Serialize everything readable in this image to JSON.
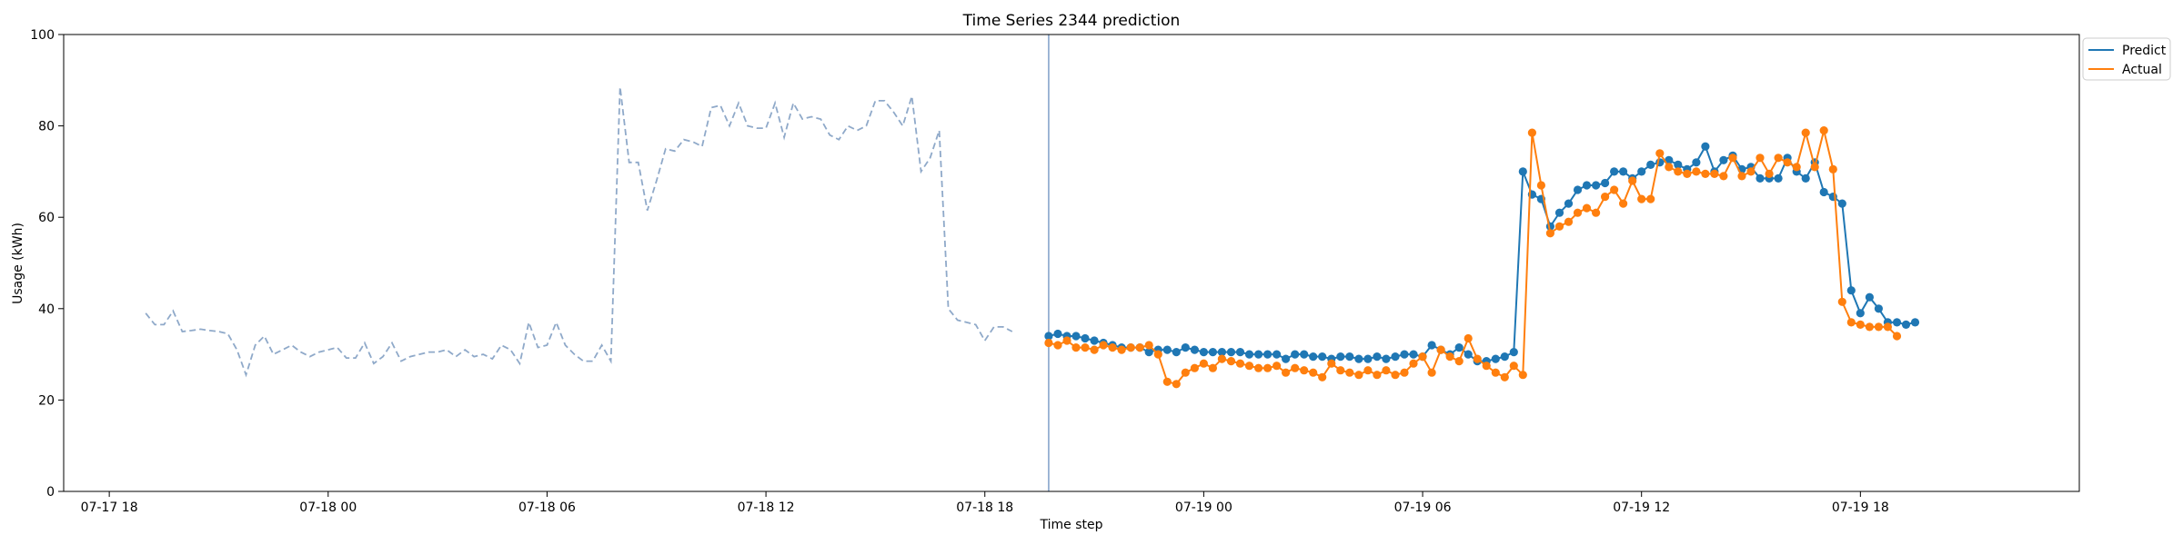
{
  "chart_data": {
    "type": "line",
    "title": "Time Series 2344 prediction",
    "xlabel": "Time step",
    "ylabel": "Usage (kWh)",
    "ylim": [
      0,
      100
    ],
    "yticks": [
      0,
      20,
      40,
      60,
      80,
      100
    ],
    "xlim": [
      "2017-07-17T16:45",
      "2017-07-20T00:00"
    ],
    "xticks": [
      {
        "t": "2017-07-17T18:00",
        "label": "07-17 18"
      },
      {
        "t": "2017-07-18T00:00",
        "label": "07-18 00"
      },
      {
        "t": "2017-07-18T06:00",
        "label": "07-18 06"
      },
      {
        "t": "2017-07-18T12:00",
        "label": "07-18 12"
      },
      {
        "t": "2017-07-18T18:00",
        "label": "07-18 18"
      },
      {
        "t": "2017-07-19T00:00",
        "label": "07-19 00"
      },
      {
        "t": "2017-07-19T06:00",
        "label": "07-19 06"
      },
      {
        "t": "2017-07-19T12:00",
        "label": "07-19 12"
      },
      {
        "t": "2017-07-19T18:00",
        "label": "07-19 18"
      }
    ],
    "grid": false,
    "legend_position": "top-right, outside plot",
    "split_marker_time": "2017-07-18T19:45",
    "history": {
      "start": "2017-07-17T19:00",
      "step_minutes": 15,
      "style": "dashed",
      "color": "#8fa9c9",
      "values": [
        39,
        36.5,
        36.5,
        39.5,
        35,
        35.2,
        35.5,
        35.2,
        35,
        34.5,
        31,
        25.5,
        32,
        34,
        30,
        31,
        32,
        30.5,
        29.5,
        30.5,
        31,
        31.5,
        29.2,
        29.2,
        32.5,
        28,
        29.5,
        32.5,
        28.5,
        29.5,
        30,
        30.5,
        30.5,
        31,
        29.5,
        31,
        29.5,
        30,
        29,
        32,
        31,
        28,
        37,
        31.5,
        32,
        37,
        32,
        30,
        28.5,
        28.5,
        32,
        28.5,
        88.5,
        72,
        72,
        61.5,
        68,
        75,
        74.5,
        77,
        76.5,
        75.5,
        84,
        84.5,
        80,
        85,
        80,
        79.5,
        79.5,
        85,
        77.5,
        85,
        81.5,
        82,
        81.5,
        78,
        77,
        80,
        79,
        80,
        85.5,
        85.5,
        83,
        80,
        86.5,
        70,
        73,
        79,
        40,
        37.5,
        37,
        36.5,
        33,
        36,
        36,
        35
      ]
    },
    "series": [
      {
        "name": "Predict",
        "color": "#1f77b4",
        "start": "2017-07-18T19:45",
        "step_minutes": 15,
        "values": [
          34,
          34.5,
          34,
          34,
          33.5,
          33,
          32.5,
          32,
          31.5,
          31.5,
          31.5,
          30.5,
          31,
          31,
          30.5,
          31.5,
          31,
          30.5,
          30.5,
          30.5,
          30.5,
          30.5,
          30,
          30,
          30,
          30,
          29,
          30,
          30,
          29.5,
          29.5,
          29,
          29.5,
          29.5,
          29,
          29,
          29.5,
          29,
          29.5,
          30,
          30,
          29.5,
          32,
          31,
          30,
          31.5,
          30,
          28.5,
          28.5,
          29,
          29.5,
          30.5,
          70,
          65,
          64,
          58,
          61,
          63,
          66,
          67,
          67,
          67.5,
          70,
          70,
          68.5,
          70,
          71.5,
          72,
          72.5,
          71.5,
          70.5,
          72,
          75.5,
          70,
          72.5,
          73.5,
          70.5,
          71,
          68.5,
          68.5,
          68.5,
          73,
          70,
          68.5,
          72,
          65.5,
          64.5,
          63,
          44,
          39,
          42.5,
          40,
          37,
          37,
          36.5,
          37
        ]
      },
      {
        "name": "Actual",
        "color": "#ff7f0e",
        "start": "2017-07-18T19:45",
        "step_minutes": 15,
        "values": [
          32.5,
          32,
          33,
          31.5,
          31.5,
          31,
          32,
          31.5,
          31,
          31.5,
          31.5,
          32,
          30,
          24,
          23.5,
          26,
          27,
          28,
          27,
          29,
          28.5,
          28,
          27.5,
          27,
          27,
          27.5,
          26,
          27,
          26.5,
          26,
          25,
          28,
          26.5,
          26,
          25.5,
          26.5,
          25.5,
          26.5,
          25.5,
          26,
          28,
          29.5,
          26,
          31,
          29.5,
          28.5,
          33.5,
          29,
          27.5,
          26,
          25,
          27.5,
          25.5,
          78.5,
          67,
          56.5,
          58,
          59,
          61,
          62,
          61,
          64.5,
          66,
          63,
          68,
          64,
          64,
          74,
          71,
          70,
          69.5,
          70,
          69.5,
          69.5,
          69,
          73,
          69,
          70,
          73,
          69.5,
          73,
          72,
          71,
          78.5,
          71,
          79,
          70.5,
          41.5,
          37,
          36.5,
          36,
          36,
          36,
          34
        ]
      }
    ]
  }
}
